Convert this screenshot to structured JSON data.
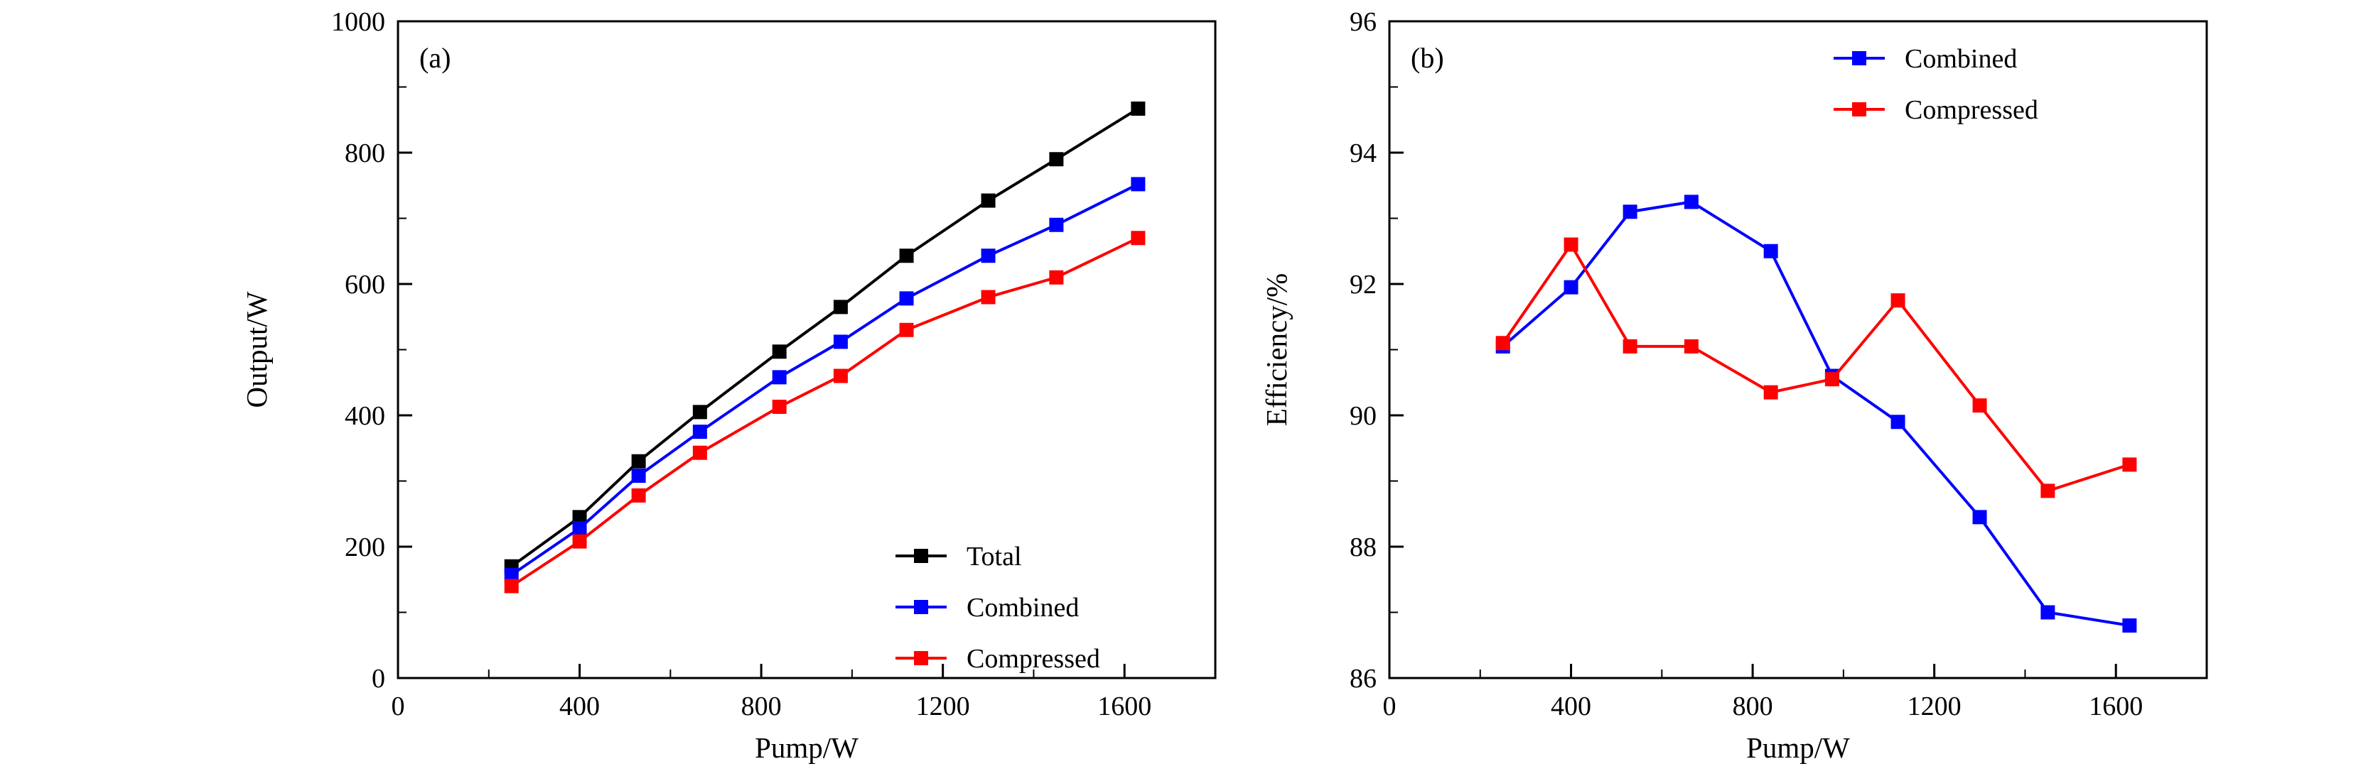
{
  "figure": {
    "background": "#ffffff",
    "axis_color": "#000000"
  },
  "chart_data": [
    {
      "type": "line",
      "panel_label": "(a)",
      "title": "",
      "xlabel": "Pump/W",
      "ylabel": "Output/W",
      "xlim": [
        0,
        1800
      ],
      "ylim": [
        0,
        1000
      ],
      "xticks": [
        0,
        400,
        800,
        1200,
        1600
      ],
      "yticks": [
        0,
        200,
        400,
        600,
        800,
        1000
      ],
      "x_minor_step": 200,
      "y_minor_step": 100,
      "grid": false,
      "legend_position": "bottom-right",
      "x": [
        250,
        400,
        530,
        665,
        840,
        975,
        1120,
        1300,
        1450,
        1630
      ],
      "series": [
        {
          "name": "Total",
          "color": "#000000",
          "marker": "square",
          "values": [
            170,
            245,
            330,
            405,
            497,
            565,
            643,
            727,
            790,
            867
          ]
        },
        {
          "name": "Combined",
          "color": "#0000ff",
          "marker": "square",
          "values": [
            157,
            228,
            308,
            375,
            458,
            512,
            578,
            643,
            690,
            752
          ]
        },
        {
          "name": "Compressed",
          "color": "#ff0000",
          "marker": "square",
          "values": [
            140,
            208,
            278,
            343,
            413,
            460,
            530,
            580,
            610,
            670
          ]
        }
      ]
    },
    {
      "type": "line",
      "panel_label": "(b)",
      "title": "",
      "xlabel": "Pump/W",
      "ylabel": "Efficiency/%",
      "xlim": [
        0,
        1800
      ],
      "ylim": [
        86,
        96
      ],
      "xticks": [
        0,
        400,
        800,
        1200,
        1600
      ],
      "yticks": [
        86,
        88,
        90,
        92,
        94,
        96
      ],
      "x_minor_step": 200,
      "y_minor_step": 1,
      "grid": false,
      "legend_position": "top-right",
      "x": [
        250,
        400,
        530,
        665,
        840,
        975,
        1120,
        1300,
        1450,
        1630
      ],
      "series": [
        {
          "name": "Combined",
          "color": "#0000ff",
          "marker": "square",
          "values": [
            91.05,
            91.95,
            93.1,
            93.25,
            92.5,
            90.6,
            89.9,
            88.45,
            87.0,
            86.8
          ]
        },
        {
          "name": "Compressed",
          "color": "#ff0000",
          "marker": "square",
          "values": [
            91.1,
            92.6,
            91.05,
            91.05,
            90.35,
            90.55,
            91.75,
            90.15,
            88.85,
            89.25
          ]
        }
      ]
    }
  ]
}
